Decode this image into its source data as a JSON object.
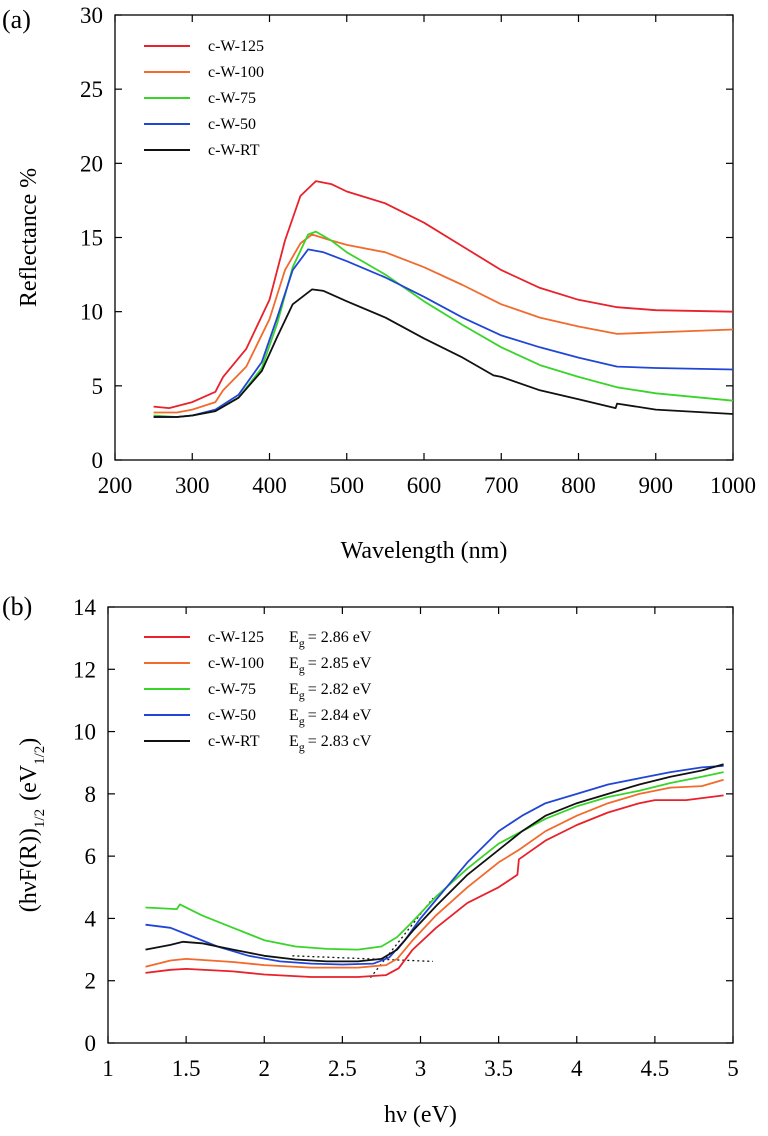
{
  "figure": {
    "colors": {
      "c-W-125": "#e8212a",
      "c-W-100": "#f26a2c",
      "c-W-75": "#39d42a",
      "c-W-50": "#2146d6",
      "c-W-RT": "#111111",
      "fit_line": "#111111"
    }
  },
  "chart_data": [
    {
      "panel_label": "(a)",
      "type": "line",
      "xlabel": "Wavelength (nm)",
      "ylabel": "Reflectance %",
      "xlim": [
        200,
        1000
      ],
      "ylim": [
        0,
        30
      ],
      "x_ticks": [
        "200",
        "300",
        "400",
        "500",
        "600",
        "700",
        "800",
        "900",
        "1000"
      ],
      "y_ticks": [
        "0",
        "5",
        "10",
        "15",
        "20",
        "25",
        "30"
      ],
      "legend_position": "top-left",
      "series": [
        {
          "name": "c-W-125",
          "points": [
            [
              250,
              3.6
            ],
            [
              270,
              3.5
            ],
            [
              300,
              3.9
            ],
            [
              330,
              4.6
            ],
            [
              340,
              5.6
            ],
            [
              370,
              7.5
            ],
            [
              400,
              10.8
            ],
            [
              420,
              14.8
            ],
            [
              440,
              17.8
            ],
            [
              460,
              18.8
            ],
            [
              480,
              18.6
            ],
            [
              500,
              18.1
            ],
            [
              550,
              17.3
            ],
            [
              600,
              16.0
            ],
            [
              650,
              14.4
            ],
            [
              700,
              12.8
            ],
            [
              750,
              11.6
            ],
            [
              800,
              10.8
            ],
            [
              850,
              10.3
            ],
            [
              900,
              10.1
            ],
            [
              1000,
              10.0
            ]
          ]
        },
        {
          "name": "c-W-100",
          "points": [
            [
              250,
              3.2
            ],
            [
              280,
              3.2
            ],
            [
              300,
              3.4
            ],
            [
              330,
              3.9
            ],
            [
              340,
              4.7
            ],
            [
              370,
              6.3
            ],
            [
              400,
              9.5
            ],
            [
              420,
              12.8
            ],
            [
              440,
              14.6
            ],
            [
              455,
              15.2
            ],
            [
              480,
              14.8
            ],
            [
              500,
              14.5
            ],
            [
              550,
              14.0
            ],
            [
              600,
              13.0
            ],
            [
              650,
              11.8
            ],
            [
              700,
              10.5
            ],
            [
              750,
              9.6
            ],
            [
              800,
              9.0
            ],
            [
              850,
              8.5
            ],
            [
              900,
              8.6
            ],
            [
              1000,
              8.8
            ]
          ]
        },
        {
          "name": "c-W-75",
          "points": [
            [
              250,
              3.0
            ],
            [
              280,
              2.9
            ],
            [
              300,
              3.0
            ],
            [
              330,
              3.3
            ],
            [
              360,
              4.2
            ],
            [
              390,
              6.2
            ],
            [
              410,
              9.2
            ],
            [
              430,
              13.0
            ],
            [
              450,
              15.2
            ],
            [
              460,
              15.4
            ],
            [
              480,
              14.8
            ],
            [
              500,
              14.0
            ],
            [
              550,
              12.5
            ],
            [
              600,
              10.7
            ],
            [
              650,
              9.1
            ],
            [
              700,
              7.6
            ],
            [
              750,
              6.4
            ],
            [
              800,
              5.6
            ],
            [
              850,
              4.9
            ],
            [
              900,
              4.5
            ],
            [
              1000,
              4.0
            ]
          ]
        },
        {
          "name": "c-W-50",
          "points": [
            [
              250,
              2.9
            ],
            [
              280,
              2.9
            ],
            [
              300,
              3.0
            ],
            [
              330,
              3.4
            ],
            [
              360,
              4.4
            ],
            [
              390,
              6.6
            ],
            [
              410,
              9.6
            ],
            [
              430,
              12.8
            ],
            [
              450,
              14.2
            ],
            [
              470,
              14.0
            ],
            [
              500,
              13.4
            ],
            [
              550,
              12.3
            ],
            [
              600,
              11.0
            ],
            [
              650,
              9.6
            ],
            [
              700,
              8.4
            ],
            [
              750,
              7.6
            ],
            [
              800,
              6.9
            ],
            [
              850,
              6.3
            ],
            [
              900,
              6.2
            ],
            [
              1000,
              6.1
            ]
          ]
        },
        {
          "name": "c-W-RT",
          "points": [
            [
              250,
              2.9
            ],
            [
              280,
              2.9
            ],
            [
              300,
              3.0
            ],
            [
              330,
              3.3
            ],
            [
              360,
              4.2
            ],
            [
              390,
              6.0
            ],
            [
              410,
              8.3
            ],
            [
              430,
              10.5
            ],
            [
              455,
              11.5
            ],
            [
              470,
              11.4
            ],
            [
              500,
              10.7
            ],
            [
              550,
              9.6
            ],
            [
              600,
              8.2
            ],
            [
              650,
              6.9
            ],
            [
              690,
              5.7
            ],
            [
              700,
              5.6
            ],
            [
              750,
              4.7
            ],
            [
              800,
              4.1
            ],
            [
              848,
              3.5
            ],
            [
              850,
              3.8
            ],
            [
              900,
              3.4
            ],
            [
              1000,
              3.1
            ]
          ]
        }
      ]
    },
    {
      "panel_label": "(b)",
      "type": "line",
      "xlabel": "hν (eV)",
      "ylabel": "(hνF(R))",
      "ylabel_sub": "1/2",
      "ylabel_unit": "(eV",
      "ylabel_unit_sub": "1/2",
      "ylabel_unit_close": ")",
      "xlim": [
        1,
        5
      ],
      "ylim": [
        0,
        14
      ],
      "x_ticks": [
        "1",
        "1.5",
        "2",
        "2.5",
        "3",
        "3.5",
        "4",
        "4.5",
        "5"
      ],
      "y_ticks": [
        "0",
        "2",
        "4",
        "6",
        "8",
        "10",
        "12",
        "14"
      ],
      "legend_position": "top-left",
      "legend_eg_prefix": "E",
      "legend_eg_sub": "g",
      "series": [
        {
          "name": "c-W-125",
          "eg": "= 2.86 eV",
          "points": [
            [
              1.24,
              2.25
            ],
            [
              1.4,
              2.35
            ],
            [
              1.5,
              2.38
            ],
            [
              1.8,
              2.3
            ],
            [
              2.0,
              2.2
            ],
            [
              2.3,
              2.12
            ],
            [
              2.6,
              2.12
            ],
            [
              2.78,
              2.18
            ],
            [
              2.86,
              2.4
            ],
            [
              2.95,
              3.0
            ],
            [
              3.1,
              3.7
            ],
            [
              3.3,
              4.5
            ],
            [
              3.5,
              5.0
            ],
            [
              3.62,
              5.4
            ],
            [
              3.63,
              5.9
            ],
            [
              3.8,
              6.5
            ],
            [
              4.0,
              7.0
            ],
            [
              4.2,
              7.4
            ],
            [
              4.4,
              7.7
            ],
            [
              4.5,
              7.8
            ],
            [
              4.6,
              7.8
            ],
            [
              4.7,
              7.8
            ],
            [
              4.94,
              7.95
            ]
          ]
        },
        {
          "name": "c-W-100",
          "eg": "= 2.85 eV",
          "points": [
            [
              1.24,
              2.45
            ],
            [
              1.4,
              2.65
            ],
            [
              1.5,
              2.7
            ],
            [
              1.8,
              2.6
            ],
            [
              2.0,
              2.5
            ],
            [
              2.3,
              2.42
            ],
            [
              2.6,
              2.42
            ],
            [
              2.78,
              2.5
            ],
            [
              2.85,
              2.7
            ],
            [
              2.95,
              3.3
            ],
            [
              3.1,
              4.1
            ],
            [
              3.3,
              5.0
            ],
            [
              3.5,
              5.8
            ],
            [
              3.63,
              6.2
            ],
            [
              3.8,
              6.8
            ],
            [
              4.0,
              7.3
            ],
            [
              4.2,
              7.7
            ],
            [
              4.4,
              8.0
            ],
            [
              4.6,
              8.2
            ],
            [
              4.8,
              8.25
            ],
            [
              4.94,
              8.45
            ]
          ]
        },
        {
          "name": "c-W-75",
          "eg": "= 2.82 eV",
          "points": [
            [
              1.24,
              4.35
            ],
            [
              1.44,
              4.3
            ],
            [
              1.46,
              4.45
            ],
            [
              1.6,
              4.1
            ],
            [
              1.8,
              3.7
            ],
            [
              2.0,
              3.3
            ],
            [
              2.2,
              3.1
            ],
            [
              2.4,
              3.02
            ],
            [
              2.6,
              3.0
            ],
            [
              2.75,
              3.1
            ],
            [
              2.85,
              3.4
            ],
            [
              2.95,
              3.9
            ],
            [
              3.1,
              4.7
            ],
            [
              3.3,
              5.6
            ],
            [
              3.5,
              6.4
            ],
            [
              3.65,
              6.8
            ],
            [
              3.8,
              7.2
            ],
            [
              4.0,
              7.6
            ],
            [
              4.2,
              7.9
            ],
            [
              4.4,
              8.1
            ],
            [
              4.6,
              8.35
            ],
            [
              4.8,
              8.55
            ],
            [
              4.94,
              8.7
            ]
          ]
        },
        {
          "name": "c-W-50",
          "eg": "= 2.84 eV",
          "points": [
            [
              1.24,
              3.8
            ],
            [
              1.4,
              3.7
            ],
            [
              1.5,
              3.5
            ],
            [
              1.7,
              3.1
            ],
            [
              1.9,
              2.8
            ],
            [
              2.1,
              2.62
            ],
            [
              2.3,
              2.55
            ],
            [
              2.5,
              2.52
            ],
            [
              2.7,
              2.55
            ],
            [
              2.8,
              2.75
            ],
            [
              2.9,
              3.3
            ],
            [
              3.0,
              4.0
            ],
            [
              3.15,
              4.9
            ],
            [
              3.3,
              5.8
            ],
            [
              3.5,
              6.8
            ],
            [
              3.65,
              7.3
            ],
            [
              3.8,
              7.7
            ],
            [
              4.0,
              8.0
            ],
            [
              4.2,
              8.3
            ],
            [
              4.4,
              8.5
            ],
            [
              4.6,
              8.7
            ],
            [
              4.8,
              8.85
            ],
            [
              4.94,
              8.9
            ]
          ]
        },
        {
          "name": "c-W-RT",
          "eg": "= 2.83 cV",
          "points": [
            [
              1.24,
              3.0
            ],
            [
              1.4,
              3.15
            ],
            [
              1.48,
              3.25
            ],
            [
              1.6,
              3.2
            ],
            [
              1.8,
              3.0
            ],
            [
              2.0,
              2.8
            ],
            [
              2.2,
              2.68
            ],
            [
              2.4,
              2.62
            ],
            [
              2.6,
              2.62
            ],
            [
              2.75,
              2.7
            ],
            [
              2.85,
              3.0
            ],
            [
              2.95,
              3.6
            ],
            [
              3.1,
              4.4
            ],
            [
              3.3,
              5.4
            ],
            [
              3.5,
              6.2
            ],
            [
              3.65,
              6.8
            ],
            [
              3.8,
              7.3
            ],
            [
              4.0,
              7.7
            ],
            [
              4.2,
              8.0
            ],
            [
              4.4,
              8.3
            ],
            [
              4.6,
              8.55
            ],
            [
              4.8,
              8.75
            ],
            [
              4.94,
              8.95
            ]
          ]
        }
      ],
      "fit_lines": [
        {
          "style": "dotted",
          "points": [
            [
              2.18,
              2.8
            ],
            [
              3.08,
              2.62
            ]
          ]
        },
        {
          "style": "dotted",
          "points": [
            [
              2.68,
              2.1
            ],
            [
              3.08,
              4.65
            ]
          ]
        }
      ]
    }
  ]
}
